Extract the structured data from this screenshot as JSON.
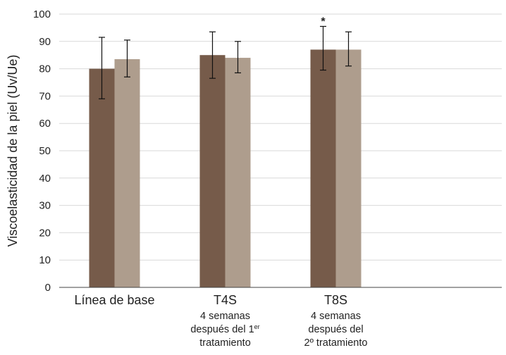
{
  "chart_data": {
    "type": "bar",
    "ylabel": "Viscoelasticidad de la piel (Uv/Ue)",
    "ylim": [
      0,
      100
    ],
    "yticks": [
      0,
      10,
      20,
      30,
      40,
      50,
      60,
      70,
      80,
      90,
      100
    ],
    "grid": true,
    "categories": [
      {
        "label": "Línea de base",
        "sublines": []
      },
      {
        "label": "T4S",
        "sublines": [
          "4 semanas",
          "después del 1er",
          "tratamiento"
        ]
      },
      {
        "label": "T8S",
        "sublines": [
          "4 semanas",
          "después del",
          "2º tratamiento"
        ]
      }
    ],
    "series": [
      {
        "color": "#765B4A",
        "values": [
          80,
          85,
          87
        ],
        "error_low": [
          69,
          76.5,
          79.5
        ],
        "error_high": [
          91.5,
          93.5,
          95.5
        ]
      },
      {
        "color": "#AE9D8D",
        "values": [
          83.5,
          84,
          87
        ],
        "error_low": [
          77,
          78.5,
          81
        ],
        "error_high": [
          90.5,
          90,
          93.5
        ]
      }
    ],
    "annotations": [
      {
        "text": "*",
        "category_index": 2,
        "series_index": 0
      }
    ]
  }
}
